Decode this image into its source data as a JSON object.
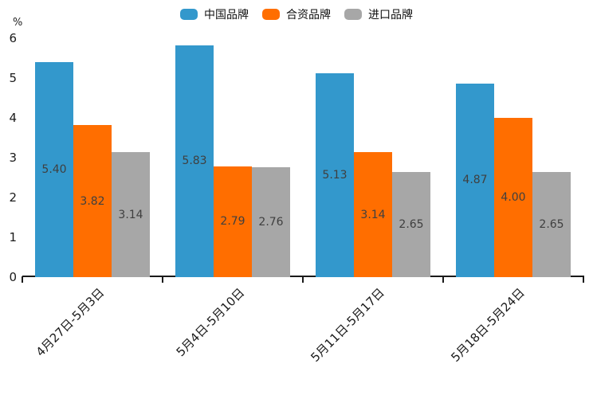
{
  "chart_data": {
    "type": "bar",
    "title": "",
    "xlabel": "",
    "ylabel": "%",
    "ylim": [
      0,
      6
    ],
    "yticks": [
      0,
      1,
      2,
      3,
      4,
      5,
      6
    ],
    "grid": false,
    "legend_position": "top",
    "value_labels": true,
    "value_label_decimals": 2,
    "categories": [
      "4月27日-5月3日",
      "5月4日-5月10日",
      "5月11日-5月17日",
      "5月18日-5月24日"
    ],
    "series": [
      {
        "name": "中国品牌",
        "color": "#3398CC",
        "values": [
          5.4,
          5.83,
          5.13,
          4.87
        ]
      },
      {
        "name": "合资品牌",
        "color": "#FF6E00",
        "values": [
          3.82,
          2.79,
          3.14,
          4.0
        ]
      },
      {
        "name": "进口品牌",
        "color": "#A7A7A7",
        "values": [
          3.14,
          2.76,
          2.65,
          2.65
        ]
      }
    ],
    "text_colors": {
      "axis": "#1a1a1a",
      "value_label": "#3f3f3f"
    }
  }
}
